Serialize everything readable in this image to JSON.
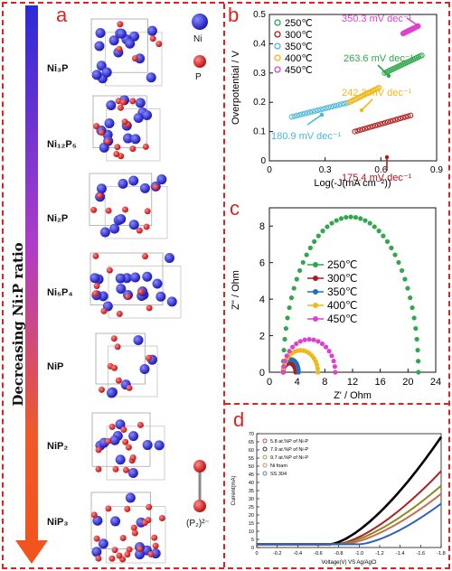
{
  "panel_a": {
    "letter": "a",
    "axis_label": "Decreasing Ni:P ratio",
    "formulas": [
      "Ni₃P",
      "Ni₁₂P₅",
      "Ni₂P",
      "Ni₅P₄",
      "NiP",
      "NiP₂",
      "NiP₃"
    ],
    "legend": {
      "ni": "Ni",
      "p": "P",
      "dimer": "(P₂)²⁻"
    },
    "colors": {
      "ni": "#2b2bd8",
      "p": "#e21b1b"
    }
  },
  "panel_b": {
    "letter": "b"
  },
  "panel_c": {
    "letter": "c"
  },
  "panel_d": {
    "letter": "d"
  },
  "chart_data": [
    {
      "id": "tafel",
      "type": "scatter",
      "xlabel": "Log(-J(mA cm⁻²))",
      "ylabel": "Overpotential / V",
      "xlim": [
        0,
        0.9
      ],
      "ylim": [
        0,
        0.5
      ],
      "xticks": [
        0,
        0.3,
        0.6,
        0.9
      ],
      "yticks": [
        0,
        0.1,
        0.2,
        0.3,
        0.4,
        0.5
      ],
      "series": [
        {
          "name": "250℃",
          "color": "#2ea84a",
          "x": [
            0.62,
            0.82
          ],
          "y": [
            0.3,
            0.36
          ]
        },
        {
          "name": "300℃",
          "color": "#b01a1a",
          "x": [
            0.46,
            0.76
          ],
          "y": [
            0.1,
            0.155
          ]
        },
        {
          "name": "350℃",
          "color": "#4bb8d8",
          "x": [
            0.12,
            0.43
          ],
          "y": [
            0.15,
            0.2
          ]
        },
        {
          "name": "400℃",
          "color": "#f0b81a",
          "x": [
            0.43,
            0.59
          ],
          "y": [
            0.2,
            0.25
          ]
        },
        {
          "name": "450℃",
          "color": "#e040d0",
          "x": [
            0.72,
            0.8
          ],
          "y": [
            0.435,
            0.46
          ]
        }
      ],
      "annotations": [
        {
          "text": "350.3 mV dec⁻¹",
          "color": "#e040d0"
        },
        {
          "text": "263.6 mV dec⁻¹",
          "color": "#2ea84a"
        },
        {
          "text": "242.3 mV dec⁻¹",
          "color": "#f0b81a"
        },
        {
          "text": "180.9 mV dec⁻¹",
          "color": "#4bb8d8"
        },
        {
          "text": "175.4 mV dec⁻¹",
          "color": "#b01a1a"
        }
      ]
    },
    {
      "id": "nyquist",
      "type": "scatter",
      "xlabel": "Z' / Ohm",
      "ylabel": "Z'' / Ohm",
      "xlim": [
        0,
        24
      ],
      "ylim": [
        0,
        9
      ],
      "xticks": [
        0,
        4,
        8,
        12,
        16,
        20,
        24
      ],
      "yticks": [
        0,
        2,
        4,
        6,
        8
      ],
      "series": [
        {
          "name": "250℃",
          "color": "#2ea84a",
          "arc": [
            2.0,
            21.5,
            8.5
          ]
        },
        {
          "name": "300℃",
          "color": "#b01a1a",
          "arc": [
            2.0,
            3.8,
            0.5
          ]
        },
        {
          "name": "350℃",
          "color": "#2070b8",
          "arc": [
            2.0,
            4.2,
            0.7
          ]
        },
        {
          "name": "400℃",
          "color": "#f0b81a",
          "arc": [
            2.0,
            7.0,
            1.2
          ]
        },
        {
          "name": "450℃",
          "color": "#e040d0",
          "arc": [
            2.0,
            9.5,
            1.8
          ]
        }
      ]
    },
    {
      "id": "lsv",
      "type": "line",
      "xlabel": "Voltage(V) VS Ag/AgCl",
      "ylabel": "Current(mA)",
      "xlim": [
        0,
        -1.8
      ],
      "ylim": [
        0,
        70
      ],
      "xticks": [
        "0",
        "-0.2",
        "-0.4",
        "-0.6",
        "-0.8",
        "-1.0",
        "-1.2",
        "-1.4",
        "-1.6",
        "-1.8"
      ],
      "yticks": [
        0,
        5,
        10,
        15,
        20,
        25,
        30,
        35,
        40,
        45,
        50,
        55,
        60,
        65,
        70
      ],
      "series": [
        {
          "name": "5.8 at.%P of Ni-P",
          "color": "#b02020",
          "onset": -0.78,
          "end": 47
        },
        {
          "name": "7.9 at.%P of Ni-P",
          "color": "#000000",
          "onset": -0.72,
          "end": 68
        },
        {
          "name": "9.7 at.%P of Ni-P",
          "color": "#8a8a20",
          "onset": -0.8,
          "end": 38
        },
        {
          "name": "Ni foam",
          "color": "#c07050",
          "onset": -0.85,
          "end": 33
        },
        {
          "name": "SS 304",
          "color": "#3060c0",
          "onset": -1.0,
          "end": 27
        }
      ]
    }
  ]
}
